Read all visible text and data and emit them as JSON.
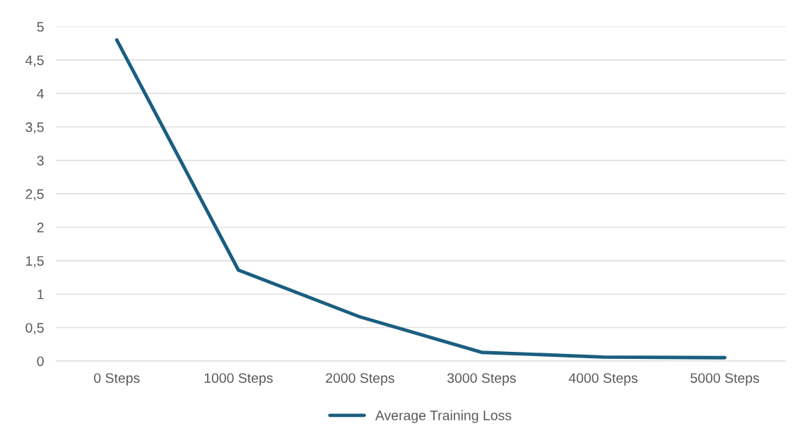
{
  "chart_data": {
    "type": "line",
    "categories": [
      "0 Steps",
      "1000 Steps",
      "2000 Steps",
      "3000 Steps",
      "4000 Steps",
      "5000 Steps"
    ],
    "series": [
      {
        "name": "Average Training Loss",
        "color": "#1b5e80",
        "values": [
          4.8,
          1.36,
          0.66,
          0.13,
          0.06,
          0.05
        ]
      }
    ],
    "ylim": [
      0,
      5
    ],
    "yticks": [
      0,
      {
        "value": 0.5,
        "label": "0,5"
      },
      1,
      {
        "value": 1.5,
        "label": "1,5"
      },
      2,
      {
        "value": 2.5,
        "label": "2,5"
      },
      3,
      {
        "value": 3.5,
        "label": "3,5"
      },
      4,
      {
        "value": 4.5,
        "label": "4,5"
      },
      5
    ],
    "grid": "y",
    "legend": "bottom",
    "marker": "none",
    "line_style": "solid"
  }
}
